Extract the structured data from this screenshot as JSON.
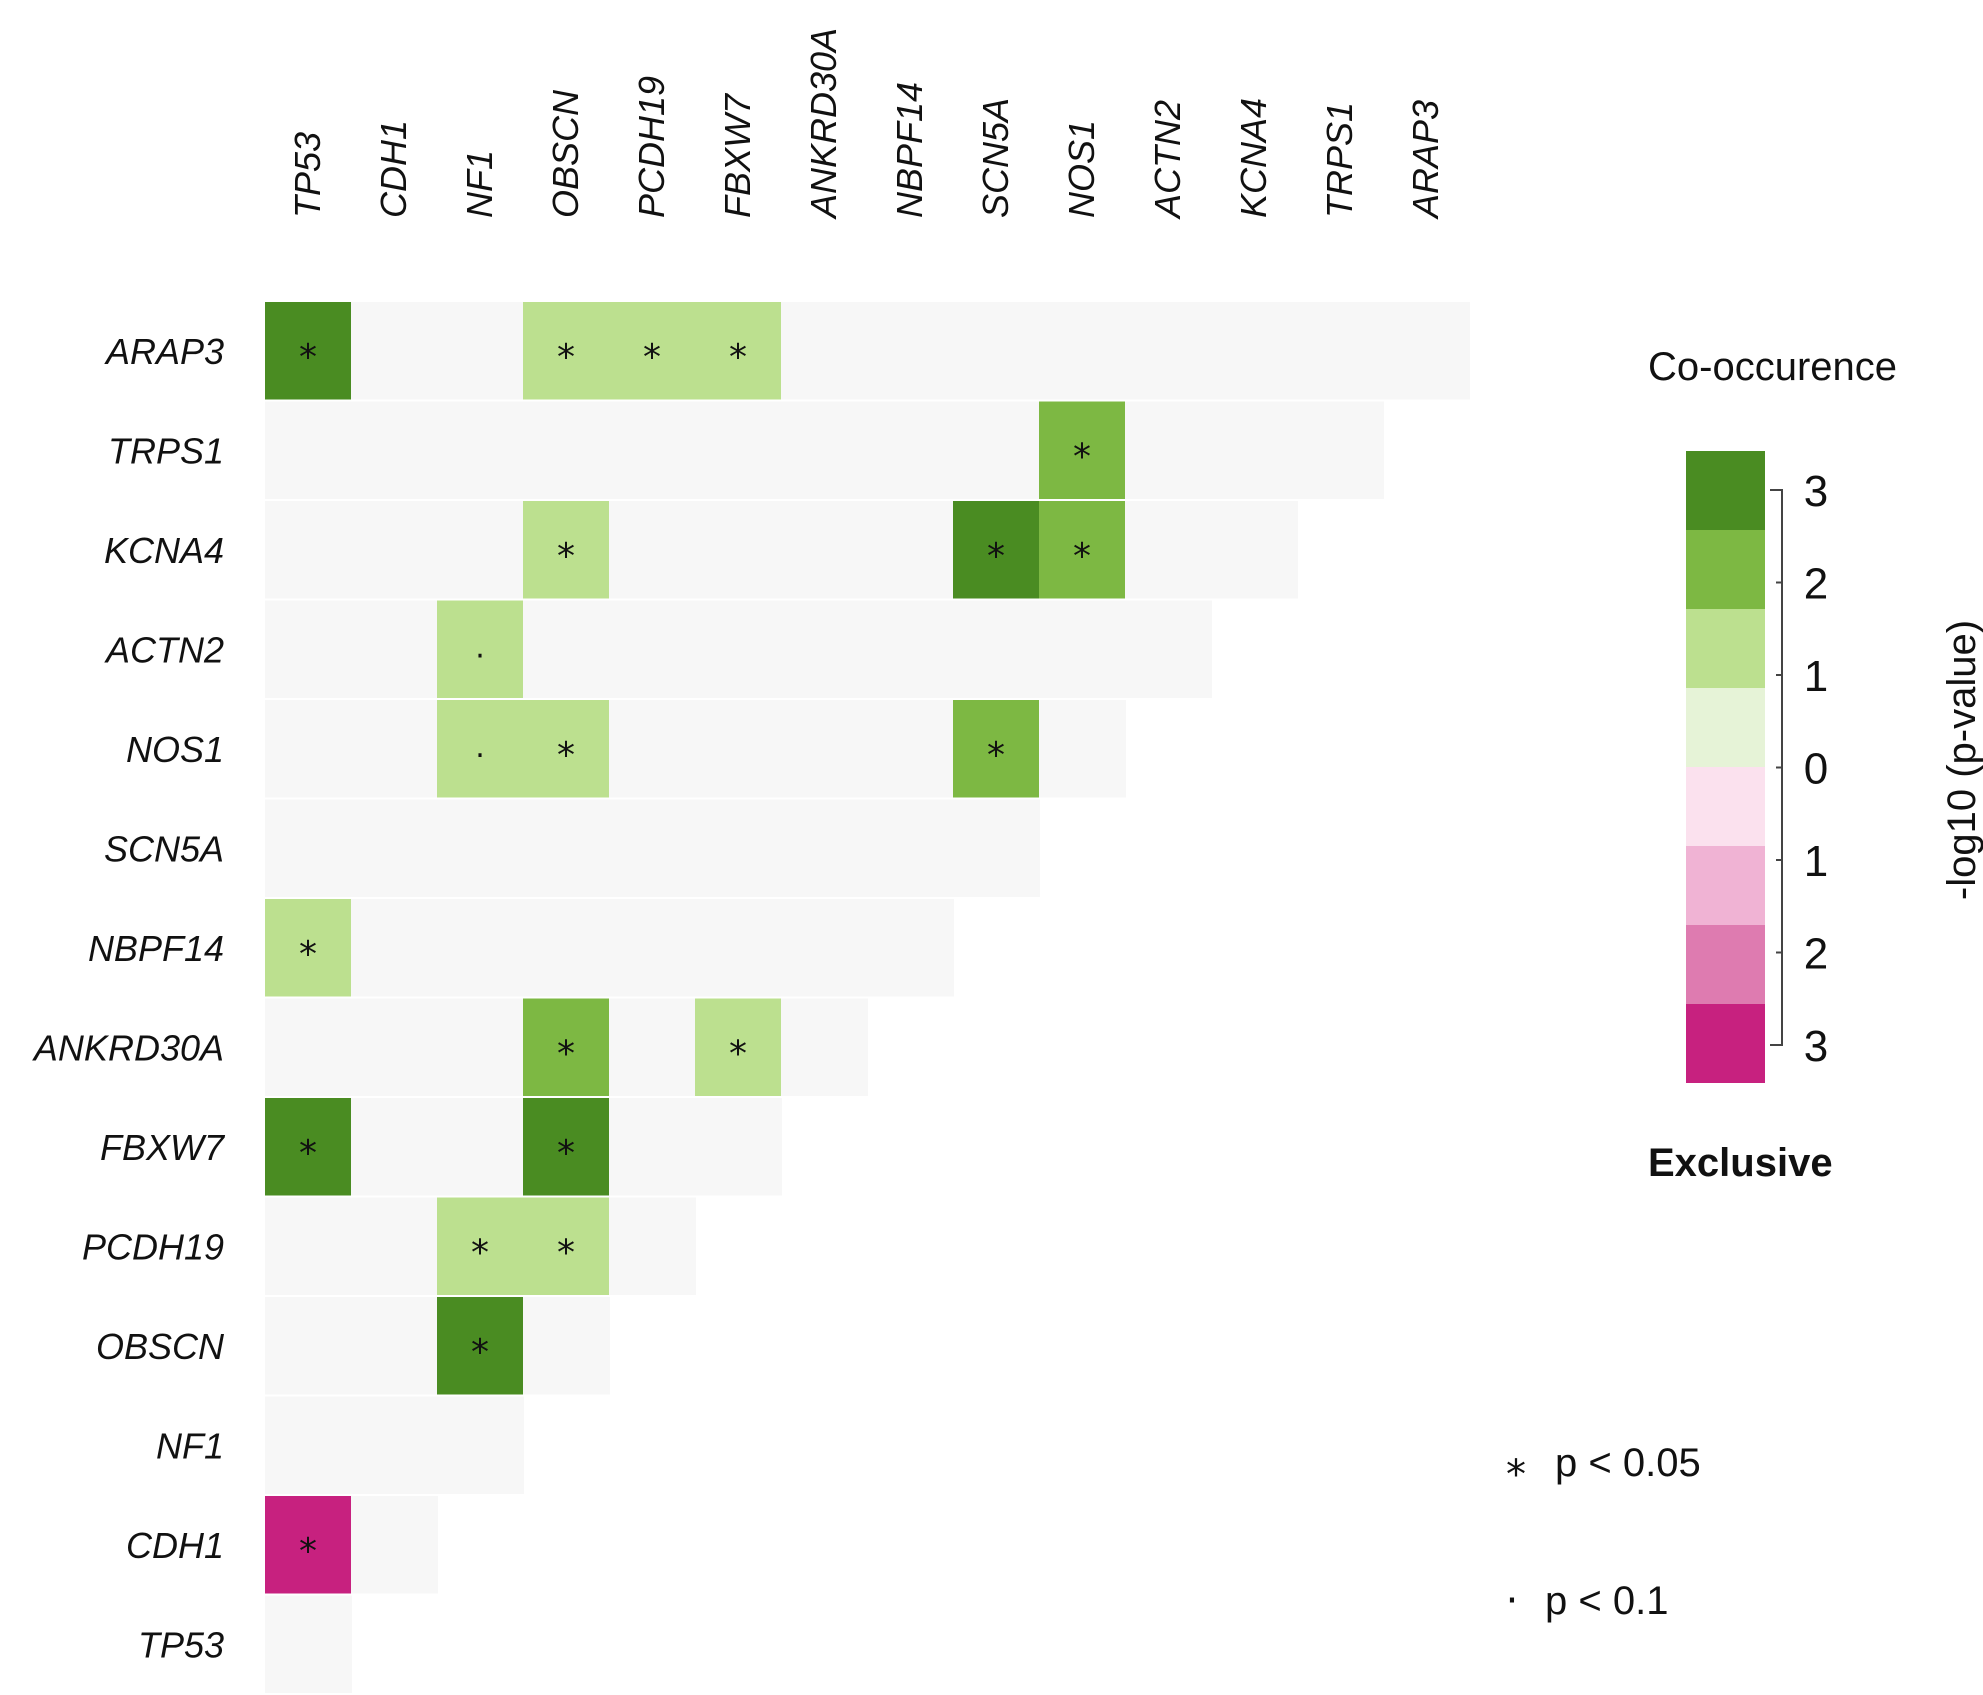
{
  "chart_data": {
    "type": "heatmap",
    "title": "",
    "column_genes": [
      "TP53",
      "CDH1",
      "NF1",
      "OBSCN",
      "PCDH19",
      "FBXW7",
      "ANKRD30A",
      "NBPF14",
      "SCN5A",
      "NOS1",
      "ACTN2",
      "KCNA4",
      "TRPS1",
      "ARAP3"
    ],
    "row_genes": [
      "ARAP3",
      "TRPS1",
      "KCNA4",
      "ACTN2",
      "NOS1",
      "SCN5A",
      "NBPF14",
      "ANKRD30A",
      "FBXW7",
      "PCDH19",
      "OBSCN",
      "NF1",
      "CDH1",
      "TP53"
    ],
    "value_scale": "signed -log10(p-value); positive = co-occurrence, negative = exclusive",
    "cells": [
      {
        "row": "ARAP3",
        "col": "TP53",
        "value": 3,
        "sig": "*"
      },
      {
        "row": "ARAP3",
        "col": "OBSCN",
        "value": 1,
        "sig": "*"
      },
      {
        "row": "ARAP3",
        "col": "PCDH19",
        "value": 1,
        "sig": "*"
      },
      {
        "row": "ARAP3",
        "col": "FBXW7",
        "value": 1,
        "sig": "*"
      },
      {
        "row": "TRPS1",
        "col": "NOS1",
        "value": 2,
        "sig": "*"
      },
      {
        "row": "KCNA4",
        "col": "OBSCN",
        "value": 1,
        "sig": "*"
      },
      {
        "row": "KCNA4",
        "col": "SCN5A",
        "value": 3,
        "sig": "*"
      },
      {
        "row": "KCNA4",
        "col": "NOS1",
        "value": 2,
        "sig": "*"
      },
      {
        "row": "ACTN2",
        "col": "NF1",
        "value": 1,
        "sig": "."
      },
      {
        "row": "NOS1",
        "col": "NF1",
        "value": 1,
        "sig": "."
      },
      {
        "row": "NOS1",
        "col": "OBSCN",
        "value": 1,
        "sig": "*"
      },
      {
        "row": "NOS1",
        "col": "SCN5A",
        "value": 2,
        "sig": "*"
      },
      {
        "row": "NBPF14",
        "col": "TP53",
        "value": 1,
        "sig": "*"
      },
      {
        "row": "ANKRD30A",
        "col": "OBSCN",
        "value": 2,
        "sig": "*"
      },
      {
        "row": "ANKRD30A",
        "col": "FBXW7",
        "value": 1,
        "sig": "*"
      },
      {
        "row": "FBXW7",
        "col": "TP53",
        "value": 3,
        "sig": "*"
      },
      {
        "row": "FBXW7",
        "col": "OBSCN",
        "value": 3,
        "sig": "*"
      },
      {
        "row": "PCDH19",
        "col": "NF1",
        "value": 1,
        "sig": "*"
      },
      {
        "row": "PCDH19",
        "col": "OBSCN",
        "value": 1,
        "sig": "*"
      },
      {
        "row": "OBSCN",
        "col": "NF1",
        "value": 3,
        "sig": "*"
      },
      {
        "row": "CDH1",
        "col": "TP53",
        "value": -3,
        "sig": "*"
      }
    ],
    "legend": {
      "top_label": "Co-occurence",
      "bottom_label": "Exclusive",
      "axis_label": "-log10 (p-value)",
      "tick_labels": [
        "3",
        "2",
        "1",
        "0",
        "1",
        "2",
        "3"
      ],
      "colors": [
        "#4a8c22",
        "#7db843",
        "#bce08f",
        "#e6f3d7",
        "#fbe1ee",
        "#f0b3d4",
        "#de7bb0",
        "#c7217f"
      ],
      "background_color": "#f7f7f7"
    },
    "significance_legend": [
      {
        "symbol": "*",
        "label": "p < 0.05"
      },
      {
        "symbol": "·",
        "label": "p < 0.1"
      }
    ]
  }
}
